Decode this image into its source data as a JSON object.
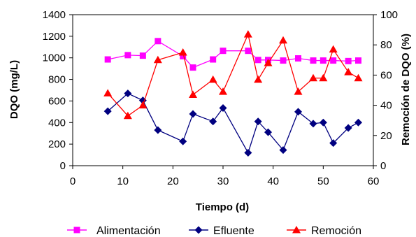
{
  "chart_data": {
    "type": "line",
    "xlabel": "Tiempo (d)",
    "ylabel_left": "DQO (mg/L)",
    "ylabel_right": "Remoción de DQO (%)",
    "xlim": [
      0,
      60
    ],
    "ylim_left": [
      0,
      1400
    ],
    "ylim_right": [
      0,
      100
    ],
    "x_ticks": [
      0,
      10,
      20,
      30,
      40,
      50,
      60
    ],
    "y_left_ticks": [
      0,
      200,
      400,
      600,
      800,
      1000,
      1200,
      1400
    ],
    "y_right_ticks": [
      0,
      20,
      40,
      60,
      80,
      100
    ],
    "grid": false,
    "legend_position": "bottom",
    "series": [
      {
        "name": "Alimentación",
        "axis": "left",
        "marker": "square",
        "color": "#ff00ff",
        "x": [
          7,
          11,
          14,
          17,
          22,
          24,
          28,
          30,
          35,
          37,
          39,
          42,
          45,
          48,
          50,
          52,
          55,
          57
        ],
        "y": [
          985,
          1025,
          1020,
          1155,
          1015,
          910,
          985,
          1065,
          1065,
          980,
          980,
          975,
          995,
          975,
          975,
          975,
          970,
          975
        ]
      },
      {
        "name": "Efluente",
        "axis": "left",
        "marker": "diamond",
        "color": "#000080",
        "x": [
          7,
          11,
          14,
          17,
          22,
          24,
          28,
          30,
          35,
          37,
          39,
          42,
          45,
          48,
          50,
          52,
          55,
          57
        ],
        "y": [
          505,
          670,
          605,
          330,
          225,
          480,
          410,
          535,
          120,
          410,
          310,
          145,
          500,
          390,
          400,
          210,
          350,
          400
        ]
      },
      {
        "name": "Remoción",
        "axis": "right",
        "marker": "triangle",
        "color": "#ff0000",
        "x": [
          7,
          11,
          14,
          17,
          22,
          24,
          28,
          30,
          35,
          37,
          39,
          42,
          45,
          48,
          50,
          52,
          55,
          57
        ],
        "y": [
          48,
          33,
          40,
          70,
          75,
          47,
          57,
          49,
          87,
          57,
          68,
          83,
          49,
          58,
          58,
          77,
          62,
          58
        ]
      }
    ]
  }
}
